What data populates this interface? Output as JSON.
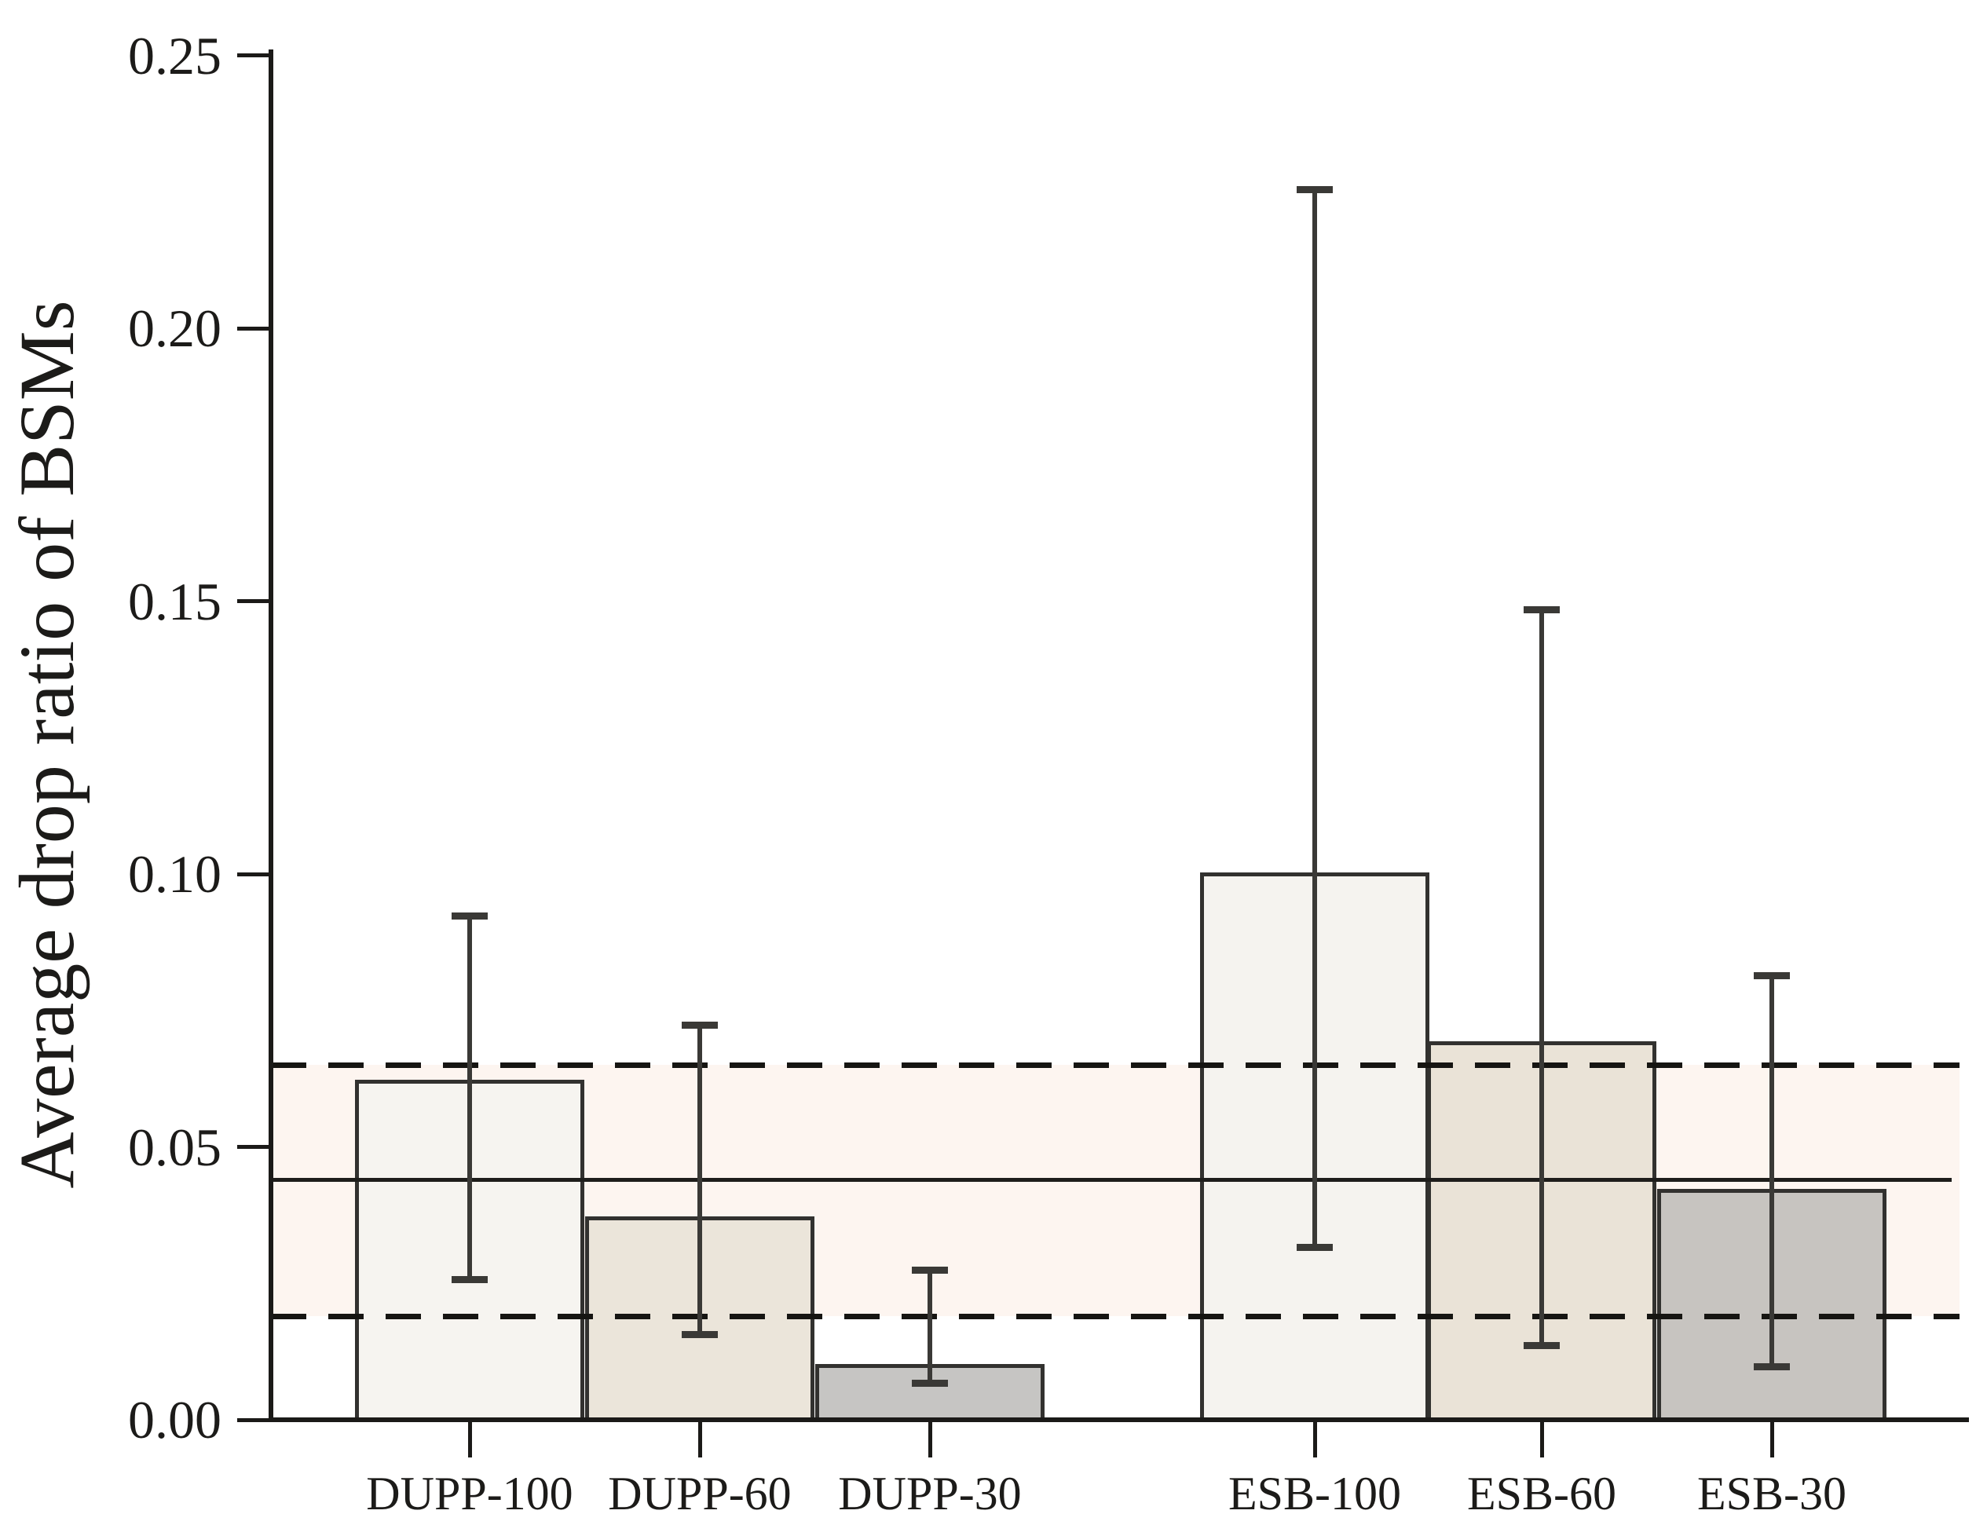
{
  "chart_data": {
    "type": "bar",
    "title": "",
    "ylabel": "Average drop ratio of BSMs",
    "xlabel": "",
    "categories": [
      "DUPP-100",
      "DUPP-60",
      "DUPP-30",
      "ESB-100",
      "ESB-60",
      "ESB-30"
    ],
    "values": [
      0.062,
      0.037,
      0.01,
      0.1,
      0.069,
      0.042
    ],
    "error_low": [
      0.025,
      0.015,
      0.006,
      0.031,
      0.013,
      0.009
    ],
    "error_high": [
      0.093,
      0.073,
      0.028,
      0.226,
      0.149,
      0.082
    ],
    "ylim": [
      0,
      0.25
    ],
    "ytick_values": [
      0.0,
      0.05,
      0.1,
      0.15,
      0.2,
      0.25
    ],
    "ytick_labels": [
      "0.00",
      "0.05",
      "0.10",
      "0.15",
      "0.20",
      "0.25"
    ],
    "reference_lines": {
      "mean_solid": 0.044,
      "upper_dashed": 0.065,
      "lower_dashed": 0.019
    },
    "band": {
      "from": 0.019,
      "to": 0.065
    },
    "grid": false,
    "legend": false,
    "bar_colors": [
      "#f6f4f0",
      "#ebe5da",
      "#c6c5c3",
      "#f5f3ef",
      "#eae3d7",
      "#c7c4c0"
    ]
  },
  "colors": {
    "bar_border": "#32312f",
    "error_bar": "#3a3936",
    "axis": "#1b1a18",
    "text": "#1c1b19",
    "band_fill": "#fdf5f0",
    "solid_line": "#1e1d1b",
    "dashed_line": "#161512",
    "background": "#ffffff"
  }
}
